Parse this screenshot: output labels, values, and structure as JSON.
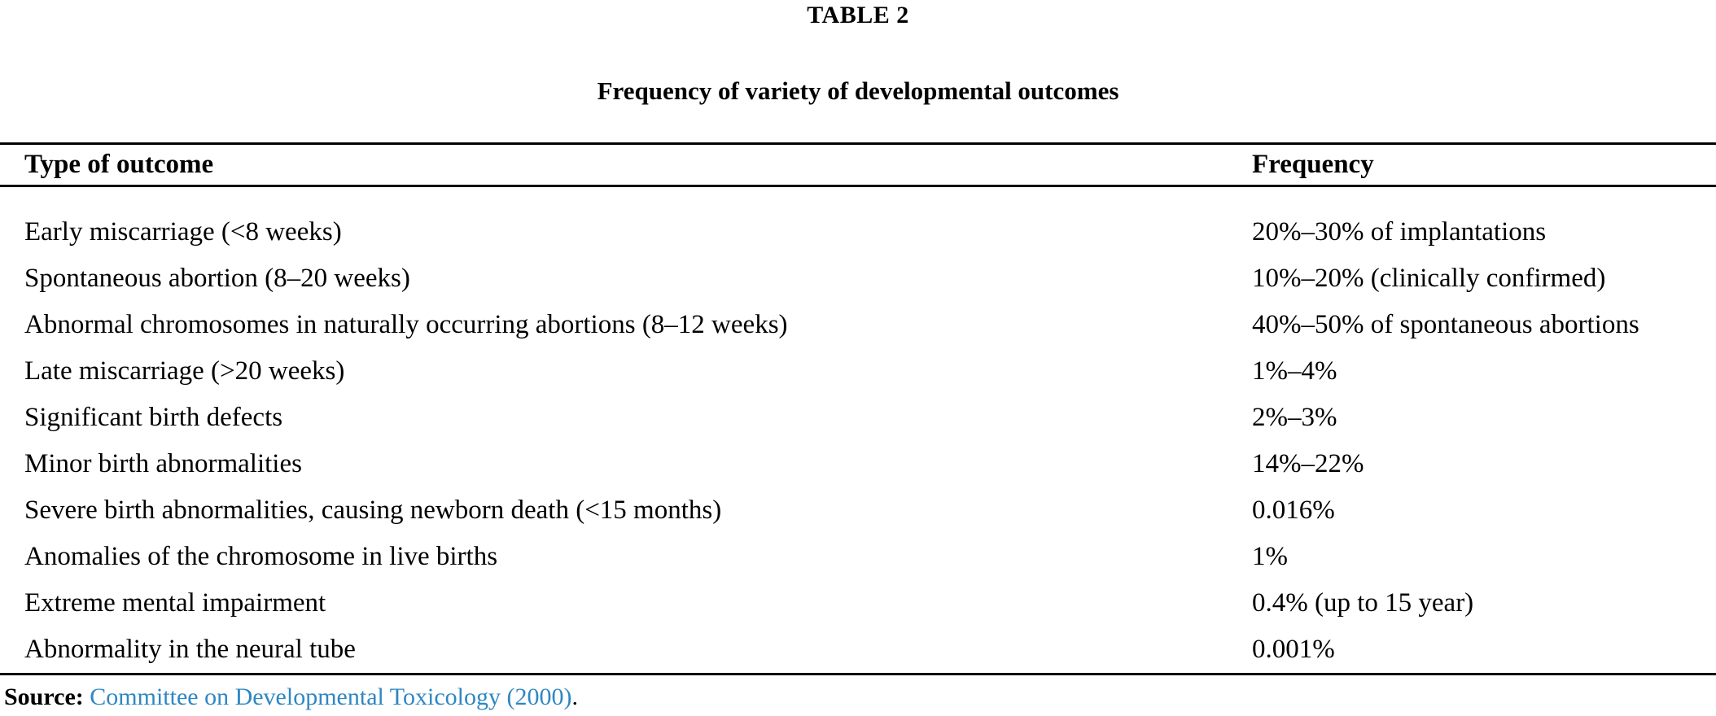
{
  "table_label": "TABLE 2",
  "table_caption": "Frequency of variety of developmental outcomes",
  "table": {
    "columns": [
      "Type of outcome",
      "Frequency"
    ],
    "rows": [
      {
        "outcome": "Early miscarriage (<8 weeks)",
        "frequency": "20%–30% of implantations"
      },
      {
        "outcome": "Spontaneous abortion (8–20 weeks)",
        "frequency": "10%–20% (clinically confirmed)"
      },
      {
        "outcome": "Abnormal chromosomes in naturally occurring abortions (8–12 weeks)",
        "frequency": "40%–50% of spontaneous abortions"
      },
      {
        "outcome": "Late miscarriage (>20 weeks)",
        "frequency": "1%–4%"
      },
      {
        "outcome": "Significant birth defects",
        "frequency": "2%–3%"
      },
      {
        "outcome": "Minor birth abnormalities",
        "frequency": "14%–22%"
      },
      {
        "outcome": "Severe birth abnormalities, causing newborn death (<15 months)",
        "frequency": "0.016%"
      },
      {
        "outcome": "Anomalies of the chromosome in live births",
        "frequency": "1%"
      },
      {
        "outcome": "Extreme mental impairment",
        "frequency": "0.4% (up to 15 year)"
      },
      {
        "outcome": "Abnormality in the neural tube",
        "frequency": "0.001%"
      }
    ]
  },
  "source": {
    "label": "Source:",
    "link_text": "Committee on Developmental Toxicology (2000)",
    "suffix": "."
  },
  "colors": {
    "text": "#000000",
    "rule": "#000000",
    "link_blue": "#2e87c3",
    "background": "#ffffff"
  }
}
